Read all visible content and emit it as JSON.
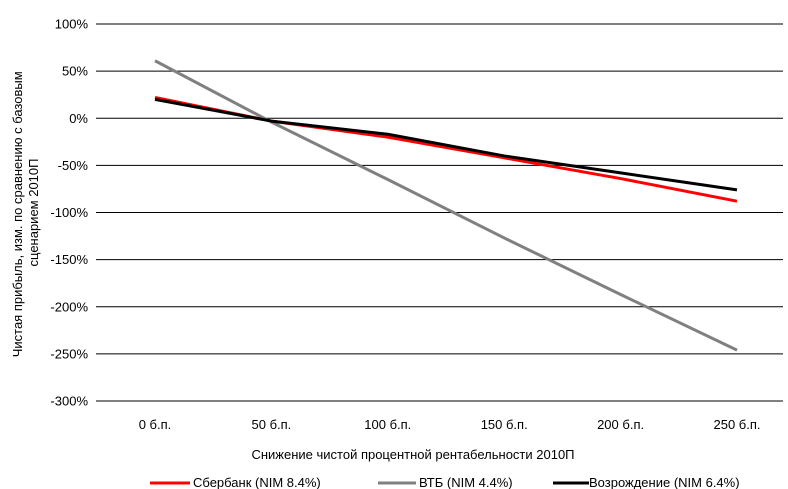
{
  "chart_data": {
    "type": "line",
    "title": "",
    "xlabel": "Снижение чистой процентной рентабельности 2010П",
    "ylabel_lines": [
      "Чистая прибыль, изм. по сравнению с базовым",
      "сценарием 2010П"
    ],
    "categories": [
      "0 б.п.",
      "50 б.п.",
      "100 б.п.",
      "150 б.п.",
      "200 б.п.",
      "250 б.п."
    ],
    "y_ticks": [
      "100%",
      "50%",
      "0%",
      "-50%",
      "-100%",
      "-150%",
      "-200%",
      "-250%",
      "-300%"
    ],
    "ylim": [
      -300,
      100
    ],
    "y_unit": "%",
    "grid": "horizontal",
    "legend_position": "bottom",
    "series": [
      {
        "name": "Сбербанк (NIM 8.4%)",
        "color": "#ff0000",
        "values": [
          22,
          -3,
          -20,
          -42,
          -64,
          -88
        ]
      },
      {
        "name": "ВТБ (NIM 4.4%)",
        "color": "#808080",
        "values": [
          61,
          -4,
          -65,
          -127,
          -187,
          -246
        ]
      },
      {
        "name": "Возрождение (NIM 6.4%)",
        "color": "#000000",
        "values": [
          20,
          -3,
          -17,
          -40,
          -58,
          -76
        ]
      }
    ]
  }
}
